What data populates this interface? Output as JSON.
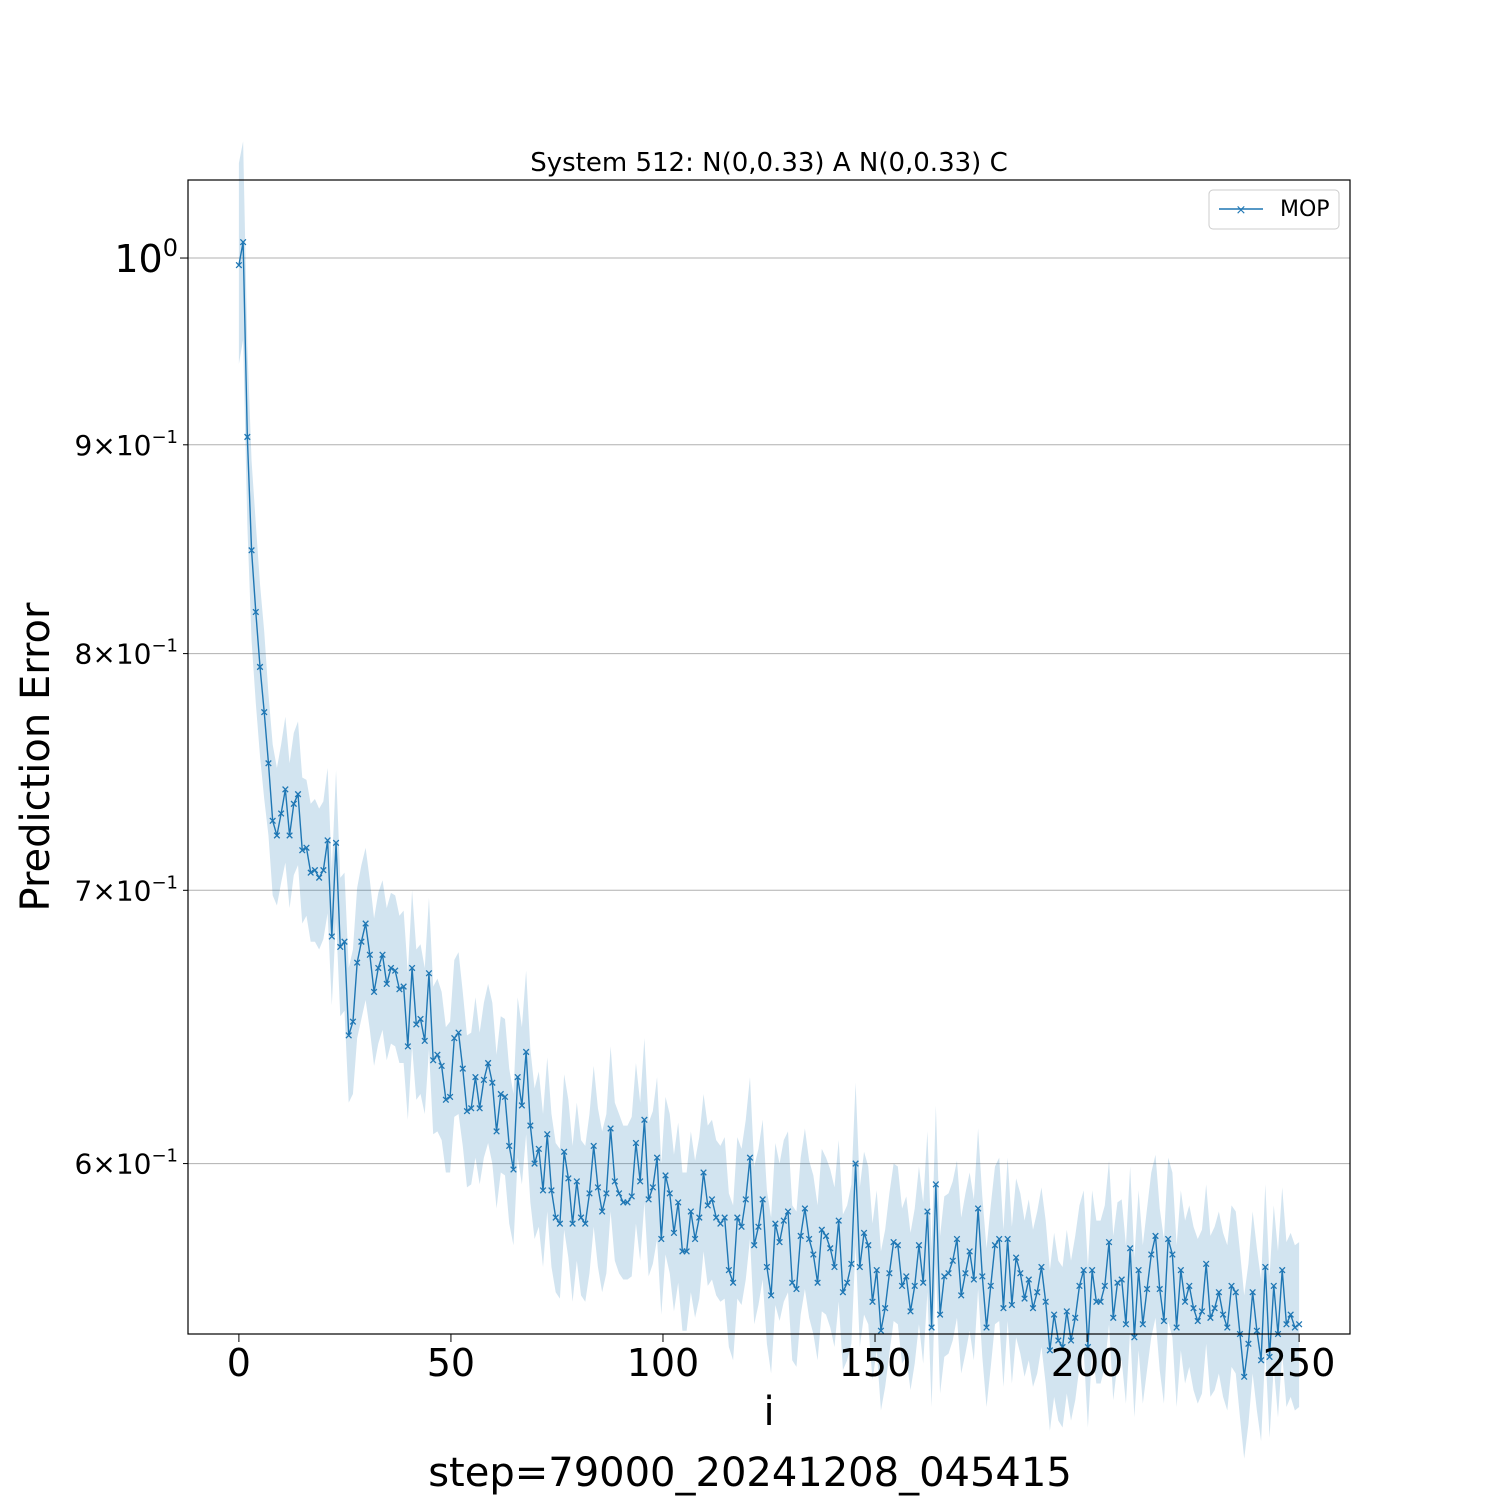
{
  "chart_data": {
    "type": "line",
    "title": "System 512: N(0,0.33) A N(0,0.33) C",
    "xlabel": "i",
    "ylabel": "Prediction Error",
    "footer": "step=79000_20241208_045415",
    "x_range": [
      0,
      250
    ],
    "xlim": [
      -12,
      262
    ],
    "ylim": [
      0.545,
      1.045
    ],
    "yscale": "log",
    "grid": "y-major-and-minor",
    "legend_position": "top-right",
    "x_ticks": [
      0,
      50,
      100,
      150,
      200,
      250
    ],
    "x_tick_labels": [
      "0",
      "50",
      "100",
      "150",
      "200",
      "250"
    ],
    "y_ticks": [
      {
        "value": 1.0,
        "base": "10",
        "exp": "0",
        "major": true
      },
      {
        "value": 0.9,
        "base": "9×10",
        "exp": "−1",
        "major": false
      },
      {
        "value": 0.8,
        "base": "8×10",
        "exp": "−1",
        "major": false
      },
      {
        "value": 0.7,
        "base": "7×10",
        "exp": "−1",
        "major": false
      },
      {
        "value": 0.6,
        "base": "6×10",
        "exp": "−1",
        "major": false
      }
    ],
    "series": [
      {
        "name": "MOP",
        "color": "#1f77b4",
        "band_color": "#1f77b4",
        "marker": "x",
        "y": [
          0.996,
          1.009,
          0.904,
          0.848,
          0.819,
          0.794,
          0.774,
          0.752,
          0.728,
          0.722,
          0.731,
          0.741,
          0.722,
          0.735,
          0.739,
          0.716,
          0.717,
          0.707,
          0.708,
          0.705,
          0.708,
          0.72,
          0.682,
          0.719,
          0.678,
          0.68,
          0.645,
          0.65,
          0.672,
          0.68,
          0.687,
          0.675,
          0.661,
          0.67,
          0.675,
          0.664,
          0.67,
          0.669,
          0.662,
          0.663,
          0.641,
          0.67,
          0.649,
          0.651,
          0.643,
          0.668,
          0.636,
          0.638,
          0.634,
          0.622,
          0.623,
          0.644,
          0.646,
          0.633,
          0.618,
          0.619,
          0.63,
          0.619,
          0.629,
          0.635,
          0.628,
          0.611,
          0.624,
          0.623,
          0.606,
          0.598,
          0.63,
          0.62,
          0.639,
          0.613,
          0.6,
          0.605,
          0.591,
          0.61,
          0.591,
          0.582,
          0.58,
          0.604,
          0.595,
          0.58,
          0.594,
          0.582,
          0.58,
          0.59,
          0.606,
          0.592,
          0.584,
          0.59,
          0.612,
          0.594,
          0.59,
          0.587,
          0.587,
          0.589,
          0.607,
          0.594,
          0.615,
          0.588,
          0.592,
          0.602,
          0.575,
          0.596,
          0.59,
          0.577,
          0.587,
          0.571,
          0.571,
          0.584,
          0.575,
          0.582,
          0.597,
          0.586,
          0.588,
          0.582,
          0.58,
          0.582,
          0.565,
          0.561,
          0.582,
          0.579,
          0.588,
          0.602,
          0.573,
          0.579,
          0.588,
          0.566,
          0.557,
          0.58,
          0.574,
          0.581,
          0.584,
          0.561,
          0.559,
          0.576,
          0.585,
          0.575,
          0.57,
          0.561,
          0.578,
          0.576,
          0.572,
          0.566,
          0.581,
          0.558,
          0.561,
          0.567,
          0.6,
          0.566,
          0.577,
          0.573,
          0.555,
          0.565,
          0.546,
          0.553,
          0.564,
          0.574,
          0.573,
          0.56,
          0.563,
          0.552,
          0.56,
          0.573,
          0.561,
          0.584,
          0.547,
          0.593,
          0.551,
          0.563,
          0.564,
          0.568,
          0.575,
          0.557,
          0.564,
          0.571,
          0.562,
          0.585,
          0.563,
          0.547,
          0.56,
          0.573,
          0.575,
          0.553,
          0.575,
          0.554,
          0.569,
          0.564,
          0.556,
          0.562,
          0.553,
          0.558,
          0.566,
          0.555,
          0.54,
          0.551,
          0.543,
          0.541,
          0.552,
          0.543,
          0.55,
          0.56,
          0.565,
          0.541,
          0.565,
          0.555,
          0.555,
          0.56,
          0.574,
          0.55,
          0.561,
          0.562,
          0.548,
          0.572,
          0.544,
          0.565,
          0.548,
          0.559,
          0.57,
          0.576,
          0.559,
          0.549,
          0.575,
          0.57,
          0.547,
          0.565,
          0.555,
          0.56,
          0.553,
          0.549,
          0.552,
          0.567,
          0.55,
          0.553,
          0.558,
          0.551,
          0.547,
          0.56,
          0.558,
          0.545,
          0.532,
          0.542,
          0.558,
          0.546,
          0.537,
          0.566,
          0.538,
          0.56,
          0.545,
          0.565,
          0.548,
          0.551,
          0.547,
          0.548
        ],
        "upper": [
          1.055,
          1.068,
          0.952,
          0.892,
          0.861,
          0.832,
          0.81,
          0.782,
          0.76,
          0.75,
          0.76,
          0.772,
          0.752,
          0.765,
          0.77,
          0.746,
          0.745,
          0.735,
          0.737,
          0.733,
          0.736,
          0.75,
          0.708,
          0.749,
          0.705,
          0.707,
          0.67,
          0.677,
          0.701,
          0.71,
          0.717,
          0.704,
          0.689,
          0.699,
          0.704,
          0.693,
          0.699,
          0.698,
          0.69,
          0.692,
          0.668,
          0.7,
          0.677,
          0.679,
          0.67,
          0.697,
          0.663,
          0.666,
          0.661,
          0.648,
          0.65,
          0.673,
          0.676,
          0.661,
          0.645,
          0.646,
          0.659,
          0.646,
          0.657,
          0.664,
          0.657,
          0.638,
          0.652,
          0.651,
          0.633,
          0.624,
          0.659,
          0.648,
          0.669,
          0.64,
          0.626,
          0.632,
          0.617,
          0.637,
          0.617,
          0.607,
          0.605,
          0.631,
          0.622,
          0.606,
          0.621,
          0.608,
          0.606,
          0.617,
          0.634,
          0.619,
          0.611,
          0.617,
          0.641,
          0.621,
          0.617,
          0.613,
          0.613,
          0.616,
          0.635,
          0.621,
          0.644,
          0.614,
          0.618,
          0.63,
          0.6,
          0.623,
          0.617,
          0.603,
          0.614,
          0.597,
          0.597,
          0.611,
          0.601,
          0.609,
          0.624,
          0.613,
          0.615,
          0.608,
          0.606,
          0.609,
          0.59,
          0.586,
          0.609,
          0.605,
          0.615,
          0.63,
          0.599,
          0.605,
          0.615,
          0.591,
          0.582,
          0.607,
          0.6,
          0.608,
          0.611,
          0.586,
          0.584,
          0.602,
          0.612,
          0.601,
          0.596,
          0.586,
          0.605,
          0.602,
          0.598,
          0.592,
          0.608,
          0.583,
          0.586,
          0.593,
          0.628,
          0.592,
          0.604,
          0.599,
          0.58,
          0.591,
          0.571,
          0.578,
          0.59,
          0.6,
          0.599,
          0.585,
          0.589,
          0.577,
          0.585,
          0.599,
          0.587,
          0.611,
          0.572,
          0.62,
          0.576,
          0.589,
          0.59,
          0.594,
          0.601,
          0.582,
          0.59,
          0.597,
          0.588,
          0.612,
          0.589,
          0.572,
          0.586,
          0.599,
          0.602,
          0.578,
          0.602,
          0.579,
          0.595,
          0.59,
          0.581,
          0.588,
          0.578,
          0.584,
          0.592,
          0.581,
          0.565,
          0.577,
          0.568,
          0.566,
          0.578,
          0.568,
          0.576,
          0.586,
          0.591,
          0.566,
          0.591,
          0.581,
          0.581,
          0.586,
          0.601,
          0.576,
          0.587,
          0.588,
          0.573,
          0.599,
          0.569,
          0.591,
          0.573,
          0.585,
          0.597,
          0.603,
          0.585,
          0.575,
          0.602,
          0.597,
          0.573,
          0.591,
          0.581,
          0.586,
          0.579,
          0.575,
          0.578,
          0.593,
          0.576,
          0.579,
          0.584,
          0.577,
          0.573,
          0.586,
          0.584,
          0.571,
          0.557,
          0.567,
          0.584,
          0.572,
          0.562,
          0.593,
          0.563,
          0.586,
          0.571,
          0.592,
          0.574,
          0.577,
          0.573,
          0.574
        ],
        "lower": [
          0.942,
          0.955,
          0.86,
          0.806,
          0.778,
          0.755,
          0.737,
          0.722,
          0.698,
          0.694,
          0.703,
          0.711,
          0.693,
          0.706,
          0.71,
          0.687,
          0.69,
          0.68,
          0.68,
          0.677,
          0.681,
          0.691,
          0.656,
          0.689,
          0.652,
          0.654,
          0.621,
          0.624,
          0.644,
          0.651,
          0.658,
          0.647,
          0.634,
          0.642,
          0.647,
          0.636,
          0.642,
          0.641,
          0.635,
          0.635,
          0.615,
          0.641,
          0.622,
          0.624,
          0.617,
          0.64,
          0.61,
          0.611,
          0.608,
          0.597,
          0.597,
          0.616,
          0.617,
          0.606,
          0.592,
          0.593,
          0.602,
          0.593,
          0.602,
          0.607,
          0.6,
          0.585,
          0.597,
          0.596,
          0.58,
          0.573,
          0.602,
          0.593,
          0.61,
          0.587,
          0.575,
          0.579,
          0.566,
          0.584,
          0.566,
          0.558,
          0.556,
          0.578,
          0.569,
          0.555,
          0.568,
          0.557,
          0.555,
          0.564,
          0.579,
          0.566,
          0.558,
          0.564,
          0.584,
          0.568,
          0.564,
          0.562,
          0.562,
          0.563,
          0.58,
          0.568,
          0.587,
          0.563,
          0.567,
          0.575,
          0.551,
          0.57,
          0.564,
          0.552,
          0.561,
          0.546,
          0.546,
          0.558,
          0.55,
          0.556,
          0.571,
          0.56,
          0.562,
          0.557,
          0.555,
          0.556,
          0.541,
          0.537,
          0.556,
          0.554,
          0.562,
          0.575,
          0.548,
          0.554,
          0.562,
          0.542,
          0.533,
          0.554,
          0.549,
          0.555,
          0.558,
          0.537,
          0.535,
          0.551,
          0.559,
          0.55,
          0.545,
          0.537,
          0.552,
          0.551,
          0.547,
          0.541,
          0.555,
          0.534,
          0.537,
          0.542,
          0.573,
          0.541,
          0.551,
          0.548,
          0.531,
          0.54,
          0.522,
          0.529,
          0.539,
          0.549,
          0.548,
          0.536,
          0.538,
          0.528,
          0.536,
          0.548,
          0.536,
          0.558,
          0.523,
          0.567,
          0.527,
          0.538,
          0.539,
          0.543,
          0.55,
          0.533,
          0.539,
          0.546,
          0.537,
          0.559,
          0.538,
          0.523,
          0.535,
          0.548,
          0.549,
          0.529,
          0.549,
          0.53,
          0.544,
          0.539,
          0.532,
          0.537,
          0.529,
          0.533,
          0.541,
          0.53,
          0.516,
          0.526,
          0.519,
          0.517,
          0.527,
          0.519,
          0.525,
          0.535,
          0.54,
          0.517,
          0.54,
          0.53,
          0.53,
          0.535,
          0.548,
          0.525,
          0.536,
          0.537,
          0.524,
          0.546,
          0.52,
          0.54,
          0.524,
          0.534,
          0.544,
          0.55,
          0.534,
          0.524,
          0.549,
          0.544,
          0.523,
          0.54,
          0.53,
          0.535,
          0.528,
          0.524,
          0.527,
          0.542,
          0.526,
          0.528,
          0.533,
          0.526,
          0.522,
          0.535,
          0.533,
          0.52,
          0.508,
          0.518,
          0.533,
          0.522,
          0.513,
          0.54,
          0.514,
          0.535,
          0.52,
          0.539,
          0.523,
          0.526,
          0.522,
          0.523
        ]
      }
    ]
  }
}
